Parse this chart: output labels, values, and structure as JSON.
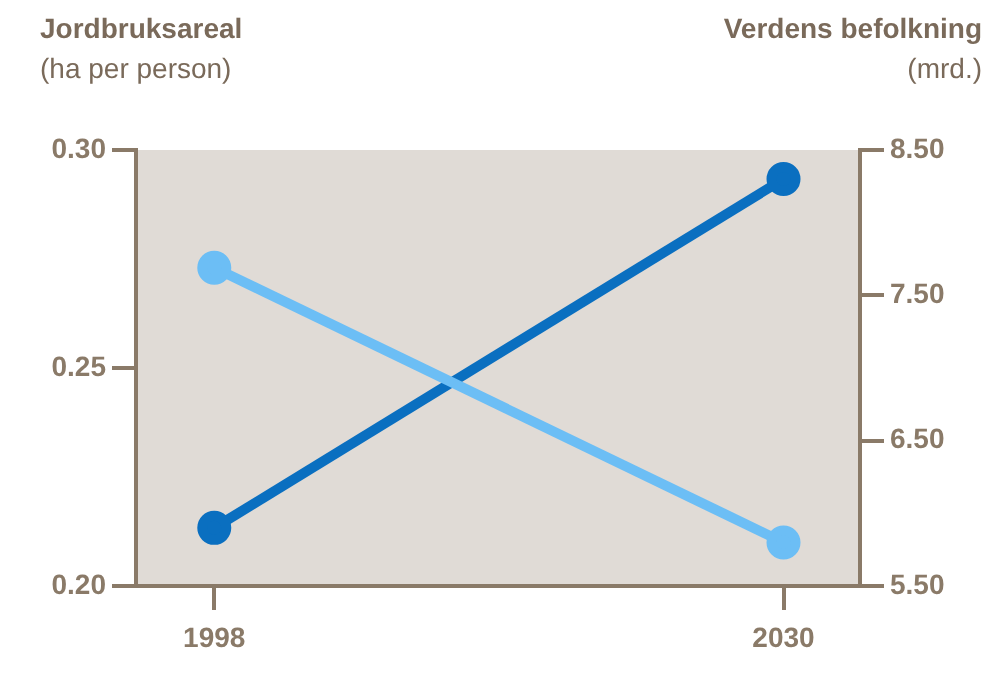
{
  "chart_data": {
    "type": "line",
    "ylabel": "Jordbruksareal\n(ha per person)",
    "y2label": "Verdens befolkning\n(mrd.)",
    "x": [
      1998,
      2030
    ],
    "xlim": [
      1993.6,
      2034.3
    ],
    "xticks": [
      1998,
      2030
    ],
    "ylim": [
      0.2,
      0.3
    ],
    "yticks": [
      {
        "value": 0.2,
        "label": "0.20"
      },
      {
        "value": 0.25,
        "label": "0.25"
      },
      {
        "value": 0.3,
        "label": "0.30"
      }
    ],
    "y2lim": [
      5.5,
      8.5
    ],
    "y2ticks": [
      {
        "value": 5.5,
        "label": "5.50"
      },
      {
        "value": 6.5,
        "label": "6.50"
      },
      {
        "value": 7.5,
        "label": "7.50"
      },
      {
        "value": 8.5,
        "label": "8.50"
      }
    ],
    "series": [
      {
        "color": "#6cbef5",
        "values": [
          0.273,
          0.21
        ]
      },
      {
        "color": "#0a6fc0",
        "values": [
          5.9,
          8.3
        ],
        "axis": "y2"
      }
    ],
    "marker": "circle",
    "grid": false,
    "legend": false
  }
}
